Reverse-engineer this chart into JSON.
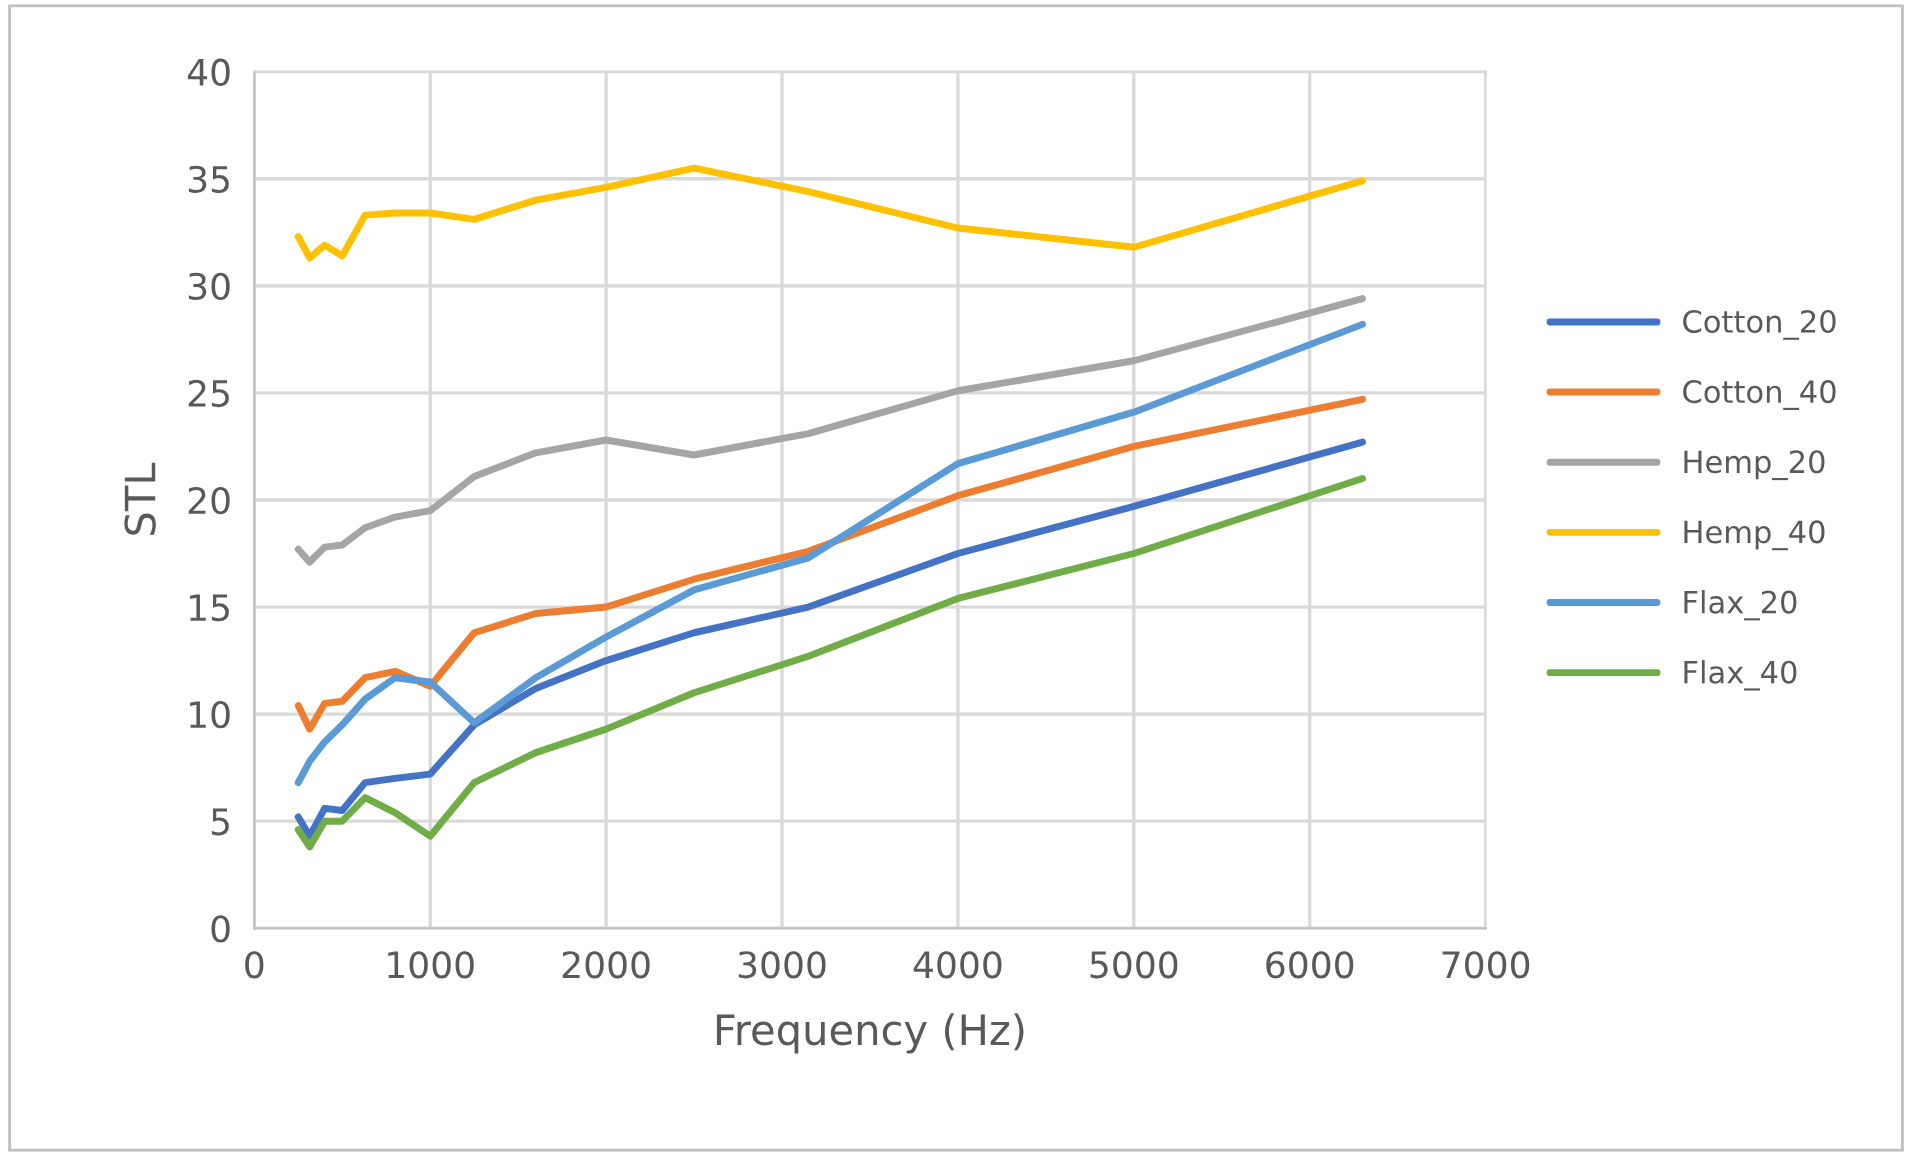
{
  "chart_data": {
    "type": "line",
    "xlabel": "Frequency (Hz)",
    "ylabel": "STL",
    "x": [
      250,
      315,
      400,
      500,
      630,
      800,
      1000,
      1250,
      1600,
      2000,
      2500,
      3150,
      4000,
      5000,
      6300
    ],
    "series": [
      {
        "name": "Cotton_20",
        "color": "#4472c4",
        "values": [
          5.2,
          4.3,
          5.6,
          5.5,
          6.8,
          7.0,
          7.2,
          9.5,
          11.2,
          12.5,
          13.8,
          15.0,
          17.5,
          19.7,
          22.7
        ]
      },
      {
        "name": "Cotton_40",
        "color": "#ed7d31",
        "values": [
          10.4,
          9.3,
          10.5,
          10.6,
          11.7,
          12.0,
          11.3,
          13.8,
          14.7,
          15.0,
          16.3,
          17.6,
          20.2,
          22.5,
          24.7
        ]
      },
      {
        "name": "Hemp_20",
        "color": "#a5a5a5",
        "values": [
          17.7,
          17.1,
          17.8,
          17.9,
          18.7,
          19.2,
          19.5,
          21.1,
          22.2,
          22.8,
          22.1,
          23.1,
          25.1,
          26.5,
          29.4
        ]
      },
      {
        "name": "Hemp_40",
        "color": "#ffc000",
        "values": [
          32.3,
          31.3,
          31.9,
          31.4,
          33.3,
          33.4,
          33.4,
          33.1,
          34.0,
          34.6,
          35.5,
          34.4,
          32.7,
          31.8,
          34.9
        ]
      },
      {
        "name": "Flax_20",
        "color": "#5b9bd5",
        "values": [
          6.8,
          7.8,
          8.7,
          9.5,
          10.7,
          11.7,
          11.5,
          9.6,
          11.7,
          13.6,
          15.8,
          17.3,
          21.7,
          24.1,
          28.2
        ]
      },
      {
        "name": "Flax_40",
        "color": "#70ad47",
        "values": [
          4.6,
          3.8,
          5.0,
          5.0,
          6.1,
          5.4,
          4.3,
          6.8,
          8.2,
          9.3,
          11.0,
          12.7,
          15.4,
          17.5,
          21.0
        ]
      }
    ],
    "xlim": [
      0,
      7000
    ],
    "xticks": [
      0,
      1000,
      2000,
      3000,
      4000,
      5000,
      6000,
      7000
    ],
    "ylim": [
      0,
      40
    ],
    "yticks": [
      0,
      5,
      10,
      15,
      20,
      25,
      30,
      35,
      40
    ],
    "grid": true,
    "legend": "right",
    "marker": "none",
    "line_style": "solid"
  }
}
